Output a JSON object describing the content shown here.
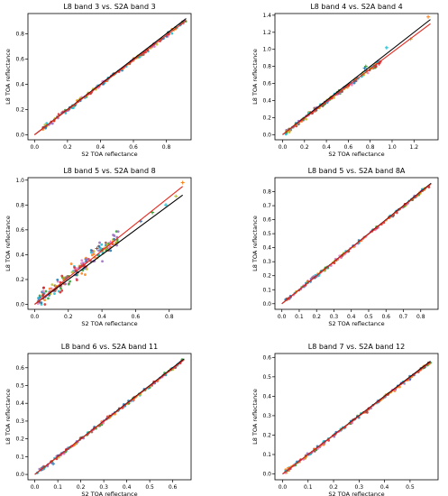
{
  "figure": {
    "panels_layout": "3 rows x 2 columns",
    "line_colors": {
      "identity": "#000000",
      "fit": "#e8281e"
    },
    "point_colors": [
      "#1f77b4",
      "#2ca02c",
      "#17becf",
      "#bcbd22",
      "#ff7f0e",
      "#d62728",
      "#9467bd",
      "#8c564b",
      "#e377c2"
    ]
  },
  "chart_data": [
    {
      "type": "scatter",
      "title": "L8 band 3 vs. S2A band 3",
      "xlabel": "S2 TOA reflectance",
      "ylabel": "L8 TOA reflectance",
      "xlim": [
        -0.04,
        0.95
      ],
      "ylim": [
        -0.04,
        0.96
      ],
      "xticks": [
        0.0,
        0.2,
        0.4,
        0.6,
        0.8
      ],
      "xtick_labels": [
        "0.0",
        "0.2",
        "0.4",
        "0.6",
        "0.8"
      ],
      "yticks": [
        0.0,
        0.2,
        0.4,
        0.6,
        0.8
      ],
      "ytick_labels": [
        "0.0",
        "0.2",
        "0.4",
        "0.6",
        "0.8"
      ],
      "points_range": [
        0.05,
        0.92
      ],
      "spread": 0.012,
      "lines": [
        {
          "name": "identity",
          "color": "#000000",
          "x": [
            0.0,
            0.92
          ],
          "y": [
            0.0,
            0.92
          ]
        },
        {
          "name": "fit",
          "color": "#e8281e",
          "x": [
            0.0,
            0.92
          ],
          "y": [
            0.0,
            0.905
          ]
        }
      ],
      "outliers": []
    },
    {
      "type": "scatter",
      "title": "L8 band 4 vs. S2A band 4",
      "xlabel": "S2 TOA reflectance",
      "ylabel": "L8 TOA reflectance",
      "xlim": [
        -0.07,
        1.42
      ],
      "ylim": [
        -0.06,
        1.42
      ],
      "xticks": [
        0.0,
        0.2,
        0.4,
        0.6,
        0.8,
        1.0,
        1.2
      ],
      "xtick_labels": [
        "0.0",
        "0.2",
        "0.4",
        "0.6",
        "0.8",
        "1.0",
        "1.2"
      ],
      "yticks": [
        0.0,
        0.2,
        0.4,
        0.6,
        0.8,
        1.0,
        1.2,
        1.4
      ],
      "ytick_labels": [
        "0.0",
        "0.2",
        "0.4",
        "0.6",
        "0.8",
        "1.0",
        "1.2",
        "1.4"
      ],
      "points_range": [
        0.03,
        0.9
      ],
      "spread": 0.018,
      "lines": [
        {
          "name": "identity",
          "color": "#000000",
          "x": [
            0.0,
            1.35
          ],
          "y": [
            0.0,
            1.35
          ]
        },
        {
          "name": "fit",
          "color": "#e8281e",
          "x": [
            0.0,
            1.35
          ],
          "y": [
            0.0,
            1.3
          ]
        }
      ],
      "outliers": [
        [
          0.75,
          0.78
        ],
        [
          0.76,
          0.8
        ],
        [
          0.95,
          1.02
        ],
        [
          1.17,
          1.12
        ],
        [
          1.33,
          1.38
        ],
        [
          0.88,
          0.83
        ]
      ]
    },
    {
      "type": "scatter",
      "title": "L8 band 5 vs. S2A band 8",
      "xlabel": "S2 TOA reflectance",
      "ylabel": "L8 TOA reflectance",
      "xlim": [
        -0.04,
        0.93
      ],
      "ylim": [
        -0.04,
        1.02
      ],
      "xticks": [
        0.0,
        0.2,
        0.4,
        0.6,
        0.8
      ],
      "xtick_labels": [
        "0.0",
        "0.2",
        "0.4",
        "0.6",
        "0.8"
      ],
      "yticks": [
        0.0,
        0.2,
        0.4,
        0.6,
        0.8,
        1.0
      ],
      "ytick_labels": [
        "0.0",
        "0.2",
        "0.4",
        "0.6",
        "0.8",
        "1.0"
      ],
      "points_range": [
        0.02,
        0.5
      ],
      "spread": 0.05,
      "lines": [
        {
          "name": "identity",
          "color": "#000000",
          "x": [
            0.0,
            0.88
          ],
          "y": [
            0.0,
            0.88
          ]
        },
        {
          "name": "fit",
          "color": "#e8281e",
          "x": [
            0.0,
            0.88
          ],
          "y": [
            0.0,
            0.95
          ]
        }
      ],
      "outliers": [
        [
          0.63,
          0.67
        ],
        [
          0.7,
          0.74
        ],
        [
          0.78,
          0.8
        ],
        [
          0.84,
          0.87
        ],
        [
          0.88,
          0.98
        ],
        [
          0.27,
          0.3
        ],
        [
          0.31,
          0.36
        ],
        [
          0.37,
          0.45
        ],
        [
          0.45,
          0.5
        ]
      ]
    },
    {
      "type": "scatter",
      "title": "L8 band 5 vs. S2A band 8A",
      "xlabel": "S2 TOA reflectance",
      "ylabel": "L8 TOA reflectance",
      "xlim": [
        -0.04,
        0.9
      ],
      "ylim": [
        -0.04,
        0.9
      ],
      "xticks": [
        0.0,
        0.1,
        0.2,
        0.3,
        0.4,
        0.5,
        0.6,
        0.7,
        0.8
      ],
      "xtick_labels": [
        "0.0",
        "0.1",
        "0.2",
        "0.3",
        "0.4",
        "0.5",
        "0.6",
        "0.7",
        "0.8"
      ],
      "yticks": [
        0.0,
        0.1,
        0.2,
        0.3,
        0.4,
        0.5,
        0.6,
        0.7,
        0.8
      ],
      "ytick_labels": [
        "0.0",
        "0.1",
        "0.2",
        "0.3",
        "0.4",
        "0.5",
        "0.6",
        "0.7",
        "0.8"
      ],
      "points_range": [
        0.02,
        0.85
      ],
      "spread": 0.008,
      "lines": [
        {
          "name": "identity",
          "color": "#000000",
          "x": [
            0.0,
            0.86
          ],
          "y": [
            0.0,
            0.86
          ]
        },
        {
          "name": "fit",
          "color": "#e8281e",
          "x": [
            0.0,
            0.86
          ],
          "y": [
            0.0,
            0.855
          ]
        }
      ],
      "outliers": []
    },
    {
      "type": "scatter",
      "title": "L8 band 6 vs. S2A band 11",
      "xlabel": "S2 TOA reflectance",
      "ylabel": "L8 TOA reflectance",
      "xlim": [
        -0.03,
        0.68
      ],
      "ylim": [
        -0.03,
        0.68
      ],
      "xticks": [
        0.0,
        0.1,
        0.2,
        0.3,
        0.4,
        0.5,
        0.6
      ],
      "xtick_labels": [
        "0.0",
        "0.1",
        "0.2",
        "0.3",
        "0.4",
        "0.5",
        "0.6"
      ],
      "yticks": [
        0.0,
        0.1,
        0.2,
        0.3,
        0.4,
        0.5,
        0.6
      ],
      "ytick_labels": [
        "0.0",
        "0.1",
        "0.2",
        "0.3",
        "0.4",
        "0.5",
        "0.6"
      ],
      "points_range": [
        0.01,
        0.65
      ],
      "spread": 0.006,
      "lines": [
        {
          "name": "identity",
          "color": "#000000",
          "x": [
            0.0,
            0.65
          ],
          "y": [
            0.0,
            0.65
          ]
        },
        {
          "name": "fit",
          "color": "#e8281e",
          "x": [
            0.0,
            0.65
          ],
          "y": [
            0.0,
            0.645
          ]
        }
      ],
      "outliers": [
        [
          0.08,
          0.06
        ]
      ]
    },
    {
      "type": "scatter",
      "title": "L8 band 7 vs. S2A band 12",
      "xlabel": "S2 TOA reflectance",
      "ylabel": "L8 TOA reflectance",
      "xlim": [
        -0.03,
        0.61
      ],
      "ylim": [
        -0.03,
        0.62
      ],
      "xticks": [
        0.0,
        0.1,
        0.2,
        0.3,
        0.4,
        0.5
      ],
      "xtick_labels": [
        "0.0",
        "0.1",
        "0.2",
        "0.3",
        "0.4",
        "0.5"
      ],
      "yticks": [
        0.0,
        0.1,
        0.2,
        0.3,
        0.4,
        0.5,
        0.6
      ],
      "ytick_labels": [
        "0.0",
        "0.1",
        "0.2",
        "0.3",
        "0.4",
        "0.5",
        "0.6"
      ],
      "points_range": [
        0.01,
        0.58
      ],
      "spread": 0.007,
      "lines": [
        {
          "name": "identity",
          "color": "#000000",
          "x": [
            0.0,
            0.58
          ],
          "y": [
            0.0,
            0.58
          ]
        },
        {
          "name": "fit",
          "color": "#e8281e",
          "x": [
            0.0,
            0.58
          ],
          "y": [
            0.0,
            0.575
          ]
        }
      ],
      "outliers": []
    }
  ]
}
